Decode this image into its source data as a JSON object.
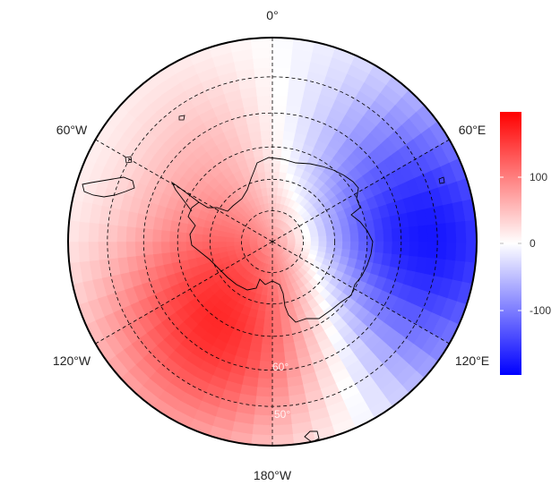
{
  "map": {
    "projection": "south-polar-stereographic",
    "lon_labels": {
      "top": "0°",
      "upper_left": "60°W",
      "upper_right": "60°E",
      "lower_left": "120°W",
      "lower_right": "120°E",
      "bottom": "180°W"
    },
    "lat_labels": [
      "60°",
      "50°"
    ],
    "graticule_meridians_deg": [
      0,
      60,
      120,
      180,
      240,
      300
    ],
    "graticule_parallels_deg": [
      -80,
      -70,
      -60,
      -50,
      -40
    ],
    "field_pattern": "dipole",
    "positive_anomaly_center": {
      "lon": -150,
      "lat": -60,
      "value": 180
    },
    "negative_anomaly_center": {
      "lon": 90,
      "lat": -45,
      "value": -190
    }
  },
  "colorbar": {
    "ticks": [
      "100",
      "0",
      "-100"
    ],
    "tick_values": [
      100,
      0,
      -100
    ],
    "min": -200,
    "max": 200,
    "colors": {
      "high": "#ff0000",
      "mid": "#ffffff",
      "low": "#0000ff"
    }
  }
}
